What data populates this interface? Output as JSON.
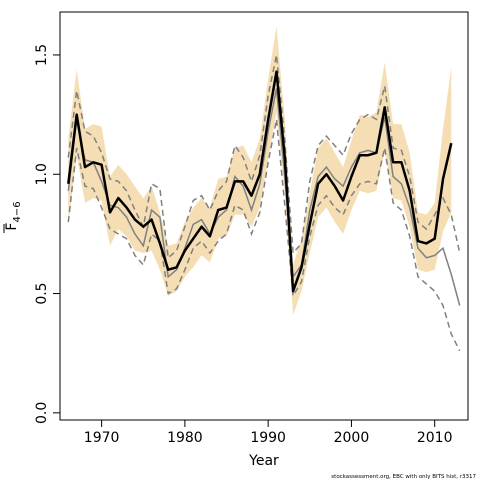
{
  "chart_data": {
    "type": "line",
    "xlabel": "Year",
    "ylabel_main": "F",
    "ylabel_sub": "4−6",
    "caption": "stockassessment.org, EBC with only BITS hist, r3317",
    "xlim": [
      1965,
      2014
    ],
    "ylim": [
      -0.03,
      1.68
    ],
    "x_ticks": [
      1970,
      1980,
      1990,
      2000,
      2010
    ],
    "y_ticks": [
      0.0,
      0.5,
      1.0,
      1.5
    ],
    "y_tick_labels": [
      "0.0",
      "0.5",
      "1.0",
      "1.5"
    ],
    "colors": {
      "band": "#f5deb3",
      "estimate": "#000000",
      "comparison": "#808080"
    },
    "years": [
      1966,
      1967,
      1968,
      1969,
      1970,
      1971,
      1972,
      1973,
      1974,
      1975,
      1976,
      1977,
      1978,
      1979,
      1980,
      1981,
      1982,
      1983,
      1984,
      1985,
      1986,
      1987,
      1988,
      1989,
      1990,
      1991,
      1992,
      1993,
      1994,
      1995,
      1996,
      1997,
      1998,
      1999,
      2000,
      2001,
      2002,
      2003,
      2004,
      2005,
      2006,
      2007,
      2008,
      2009,
      2010,
      2011,
      2012
    ],
    "series": [
      {
        "role": "estimate",
        "values": [
          0.96,
          1.25,
          1.03,
          1.05,
          1.04,
          0.84,
          0.9,
          0.86,
          0.81,
          0.78,
          0.81,
          0.71,
          0.6,
          0.61,
          0.68,
          0.73,
          0.78,
          0.74,
          0.85,
          0.86,
          0.97,
          0.97,
          0.91,
          1.0,
          1.23,
          1.43,
          1.07,
          0.51,
          0.61,
          0.79,
          0.96,
          1.0,
          0.95,
          0.89,
          0.99,
          1.08,
          1.08,
          1.09,
          1.28,
          1.05,
          1.05,
          0.93,
          0.72,
          0.71,
          0.73,
          0.98,
          1.13
        ]
      },
      {
        "role": "confidence_upper",
        "values": [
          1.15,
          1.44,
          1.19,
          1.21,
          1.2,
          0.99,
          1.04,
          1.0,
          0.95,
          0.9,
          0.95,
          0.84,
          0.7,
          0.71,
          0.8,
          0.86,
          0.9,
          0.86,
          0.98,
          0.99,
          1.11,
          1.12,
          1.05,
          1.15,
          1.4,
          1.62,
          1.23,
          0.62,
          0.73,
          0.92,
          1.11,
          1.15,
          1.09,
          1.03,
          1.14,
          1.25,
          1.24,
          1.26,
          1.47,
          1.21,
          1.21,
          1.09,
          0.84,
          0.83,
          0.88,
          1.19,
          1.45
        ]
      },
      {
        "role": "confidence_lower",
        "values": [
          0.79,
          1.08,
          0.88,
          0.9,
          0.89,
          0.7,
          0.77,
          0.74,
          0.68,
          0.67,
          0.68,
          0.6,
          0.49,
          0.51,
          0.57,
          0.61,
          0.66,
          0.63,
          0.73,
          0.74,
          0.83,
          0.83,
          0.78,
          0.86,
          1.06,
          1.26,
          0.92,
          0.41,
          0.51,
          0.67,
          0.82,
          0.86,
          0.8,
          0.75,
          0.85,
          0.93,
          0.92,
          0.93,
          1.1,
          0.9,
          0.89,
          0.78,
          0.6,
          0.59,
          0.6,
          0.76,
          0.84
        ]
      },
      {
        "role": "comparison_upper",
        "line_style": "dashed",
        "years": [
          1966,
          1967,
          1968,
          1969,
          1970,
          1971,
          1972,
          1973,
          1974,
          1975,
          1976,
          1977,
          1978,
          1979,
          1980,
          1981,
          1982,
          1983,
          1984,
          1985,
          1986,
          1987,
          1988,
          1989,
          1990,
          1991,
          1992,
          1993,
          1994,
          1995,
          1996,
          1997,
          1998,
          1999,
          2000,
          2001,
          2002,
          2003,
          2004,
          2005,
          2006,
          2007,
          2008,
          2009,
          2010,
          2011,
          2012,
          2013
        ],
        "values": [
          1.07,
          1.35,
          1.18,
          1.16,
          1.09,
          0.98,
          0.97,
          0.93,
          0.85,
          0.78,
          0.96,
          0.94,
          0.65,
          0.68,
          0.78,
          0.89,
          0.91,
          0.85,
          0.93,
          0.97,
          1.12,
          1.07,
          0.97,
          1.08,
          1.33,
          1.5,
          1.14,
          0.67,
          0.71,
          0.97,
          1.12,
          1.16,
          1.12,
          1.08,
          1.17,
          1.23,
          1.25,
          1.23,
          1.37,
          1.11,
          1.1,
          0.99,
          0.8,
          0.77,
          0.83,
          0.9,
          0.83,
          0.67
        ]
      },
      {
        "role": "comparison",
        "line_style": "solid",
        "years": [
          1966,
          1967,
          1968,
          1969,
          1970,
          1971,
          1972,
          1973,
          1974,
          1975,
          1976,
          1977,
          1978,
          1979,
          1980,
          1981,
          1982,
          1983,
          1984,
          1985,
          1986,
          1987,
          1988,
          1989,
          1990,
          1991,
          1992,
          1993,
          1994,
          1995,
          1996,
          1997,
          1998,
          1999,
          2000,
          2001,
          2002,
          2003,
          2004,
          2005,
          2006,
          2007,
          2008,
          2009,
          2010,
          2011,
          2012,
          2013
        ],
        "values": [
          0.93,
          1.23,
          1.06,
          1.05,
          0.97,
          0.87,
          0.86,
          0.82,
          0.75,
          0.7,
          0.85,
          0.82,
          0.57,
          0.6,
          0.69,
          0.79,
          0.81,
          0.75,
          0.82,
          0.85,
          0.99,
          0.95,
          0.85,
          0.96,
          1.18,
          1.36,
          0.99,
          0.57,
          0.62,
          0.85,
          0.99,
          1.03,
          0.98,
          0.95,
          1.03,
          1.09,
          1.1,
          1.09,
          1.24,
          0.99,
          0.96,
          0.86,
          0.69,
          0.65,
          0.66,
          0.69,
          0.58,
          0.45
        ]
      },
      {
        "role": "comparison_lower",
        "line_style": "dashed",
        "years": [
          1966,
          1967,
          1968,
          1969,
          1970,
          1971,
          1972,
          1973,
          1974,
          1975,
          1976,
          1977,
          1978,
          1979,
          1980,
          1981,
          1982,
          1983,
          1984,
          1985,
          1986,
          1987,
          1988,
          1989,
          1990,
          1991,
          1992,
          1993,
          1994,
          1995,
          1996,
          1997,
          1998,
          1999,
          2000,
          2001,
          2002,
          2003,
          2004,
          2005,
          2006,
          2007,
          2008,
          2009,
          2010,
          2011,
          2012,
          2013
        ],
        "values": [
          0.8,
          1.11,
          0.95,
          0.94,
          0.86,
          0.77,
          0.75,
          0.73,
          0.66,
          0.62,
          0.75,
          0.72,
          0.5,
          0.52,
          0.6,
          0.69,
          0.72,
          0.67,
          0.72,
          0.75,
          0.87,
          0.85,
          0.75,
          0.84,
          1.05,
          1.23,
          0.87,
          0.49,
          0.55,
          0.74,
          0.87,
          0.91,
          0.86,
          0.83,
          0.91,
          0.96,
          0.97,
          0.96,
          1.11,
          0.88,
          0.85,
          0.74,
          0.57,
          0.54,
          0.51,
          0.45,
          0.33,
          0.26
        ]
      }
    ]
  }
}
